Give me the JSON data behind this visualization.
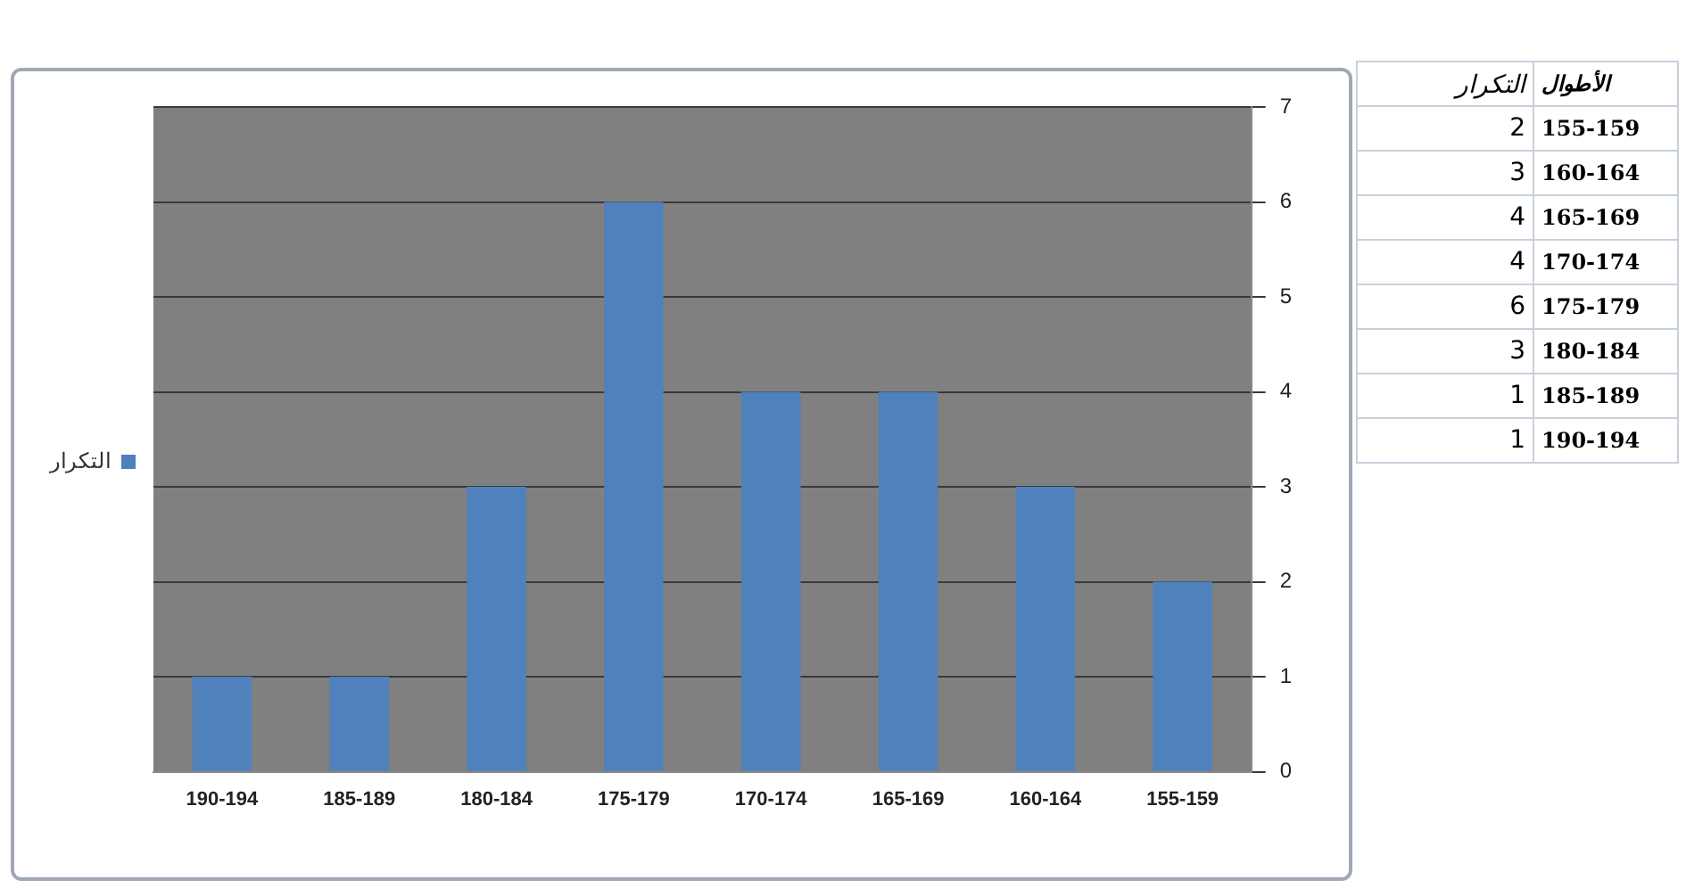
{
  "chart_data": [
    {
      "type": "bar",
      "categories": [
        "190-194",
        "185-189",
        "180-184",
        "175-179",
        "170-174",
        "165-169",
        "160-164",
        "155-159"
      ],
      "series": [
        {
          "name": "التكرار",
          "color": "#4f81bd",
          "values": [
            1,
            1,
            3,
            6,
            4,
            4,
            3,
            2
          ]
        }
      ],
      "ylim": [
        0,
        7
      ],
      "yticks": [
        0,
        1,
        2,
        3,
        4,
        5,
        6,
        7
      ],
      "grid": "y",
      "legend": "left"
    },
    {
      "type": "other",
      "annotations": [
        "الأطوال"
      ],
      "data_labels": true,
      "categories": [
        "155-159",
        "160-164",
        "165-169",
        "170-174",
        "175-179",
        "180-184",
        "185-189",
        "190-194"
      ],
      "series": [
        {
          "name": "التكرار",
          "values": [
            2,
            3,
            4,
            4,
            6,
            3,
            1,
            1
          ]
        }
      ]
    }
  ]
}
